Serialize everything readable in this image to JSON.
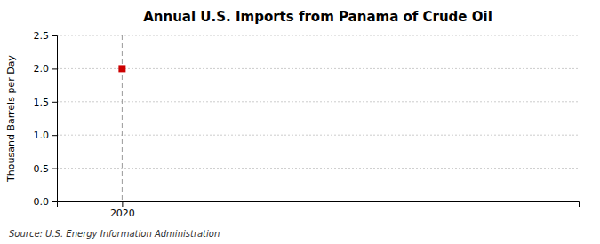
{
  "chart_data": {
    "type": "scatter",
    "title": "Annual U.S. Imports from Panama of Crude Oil",
    "ylabel": "Thousand Barrels per Day",
    "annotations": [
      "Source: U.S. Energy Information Administration"
    ],
    "x": [
      2020
    ],
    "values": [
      2.0
    ],
    "color": "#cc0000",
    "marker": "square",
    "xlim": [
      2019.5,
      2023.5
    ],
    "ylim": [
      0,
      2.5
    ],
    "xticks": [
      2020
    ],
    "yticks": [
      {
        "value": 0.0,
        "label": "0.0"
      },
      0.5,
      {
        "value": 1.0,
        "label": "1.0"
      },
      1.5,
      {
        "value": 2.0,
        "label": "2.0"
      },
      2.5
    ],
    "grid": "y"
  }
}
